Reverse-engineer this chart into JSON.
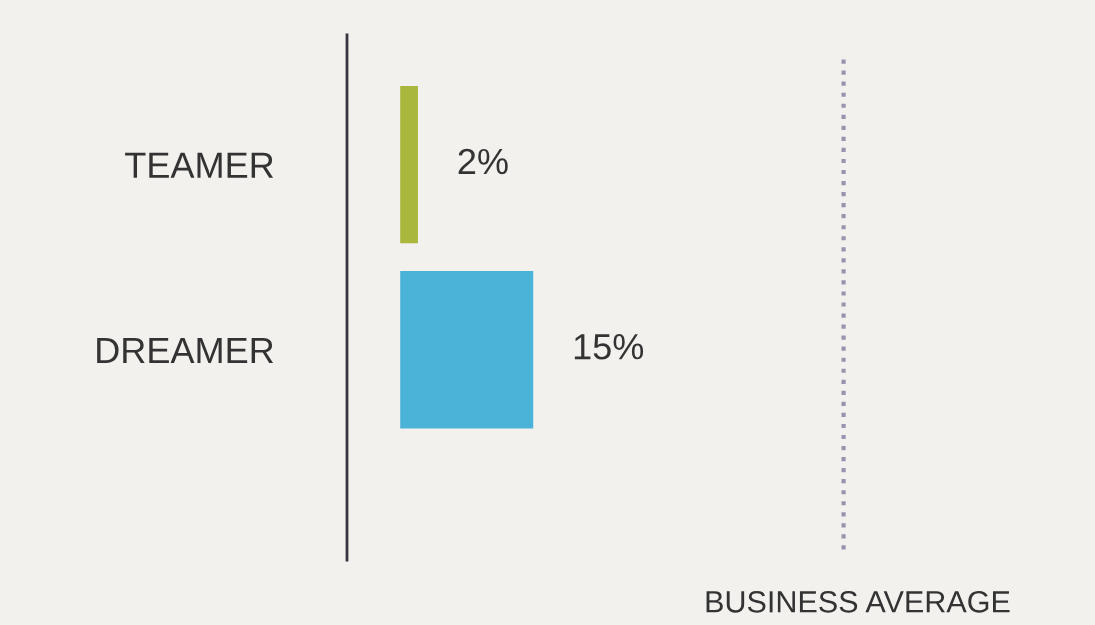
{
  "chart_data": {
    "type": "bar",
    "orientation": "horizontal",
    "categories": [
      "TEAMER",
      "DREAMER"
    ],
    "values": [
      2,
      15
    ],
    "colors": [
      "#a9b83c",
      "#4bb3d8"
    ],
    "value_labels": [
      "2%",
      "15%"
    ],
    "tick_labels": "y",
    "grid": false,
    "legend": false,
    "ref_lines": [
      {
        "axis": "x",
        "value": 50,
        "label": "BUSINESS AVERAGE",
        "color": "#9a93ad",
        "line_style": "dotted"
      }
    ]
  }
}
